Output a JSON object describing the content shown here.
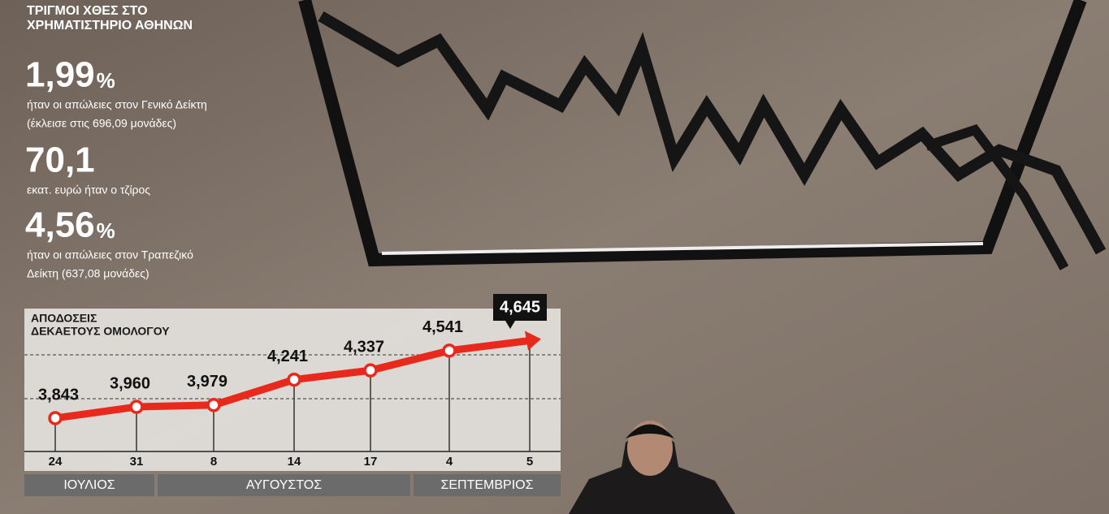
{
  "header": {
    "title": [
      "ΤΡΙΓΜΟΙ ΧΘΕΣ ΣΤΟ",
      "ΧΡΗΜΑΤΙΣΤΗΡΙΟ ΑΘΗΝΩΝ"
    ]
  },
  "stats": [
    {
      "figure": "1,99",
      "unit": "%",
      "lines": [
        "ήταν οι απώλειες στον Γενικό Δείκτη",
        "(έκλεισε στις 696,09 μονάδες)"
      ]
    },
    {
      "figure": "70,1",
      "lines": [
        "εκατ. ευρώ ήταν ο τζίρος"
      ]
    },
    {
      "figure": "4,56",
      "unit": "%",
      "lines": [
        "ήταν οι απώλειες στον Τραπεζικό",
        "Δείκτη (637,08 μονάδες)"
      ]
    }
  ],
  "chart_data": {
    "type": "line",
    "title": [
      "ΑΠΟΔΟΣΕΙΣ",
      "ΔΕΚΑΕΤΟΥΣ ΟΜΟΛΟΓΟΥ"
    ],
    "categories": [
      "24",
      "31",
      "8",
      "14",
      "17",
      "4",
      "5"
    ],
    "groups": [
      "ΙΟΥΛΙΟΣ",
      "ΑΥΓΟΥΣΤΟΣ",
      "ΣΕΠΤΕΜΒΡΙΟΣ"
    ],
    "values": [
      3.843,
      3.96,
      3.979,
      4.241,
      4.337,
      4.541,
      4.645
    ],
    "value_labels": [
      "3,843",
      "3,960",
      "3,979",
      "4,241",
      "4,337",
      "4,541",
      "4,645"
    ],
    "color": "#e8291c",
    "ylim": [
      3.7,
      4.8
    ]
  }
}
